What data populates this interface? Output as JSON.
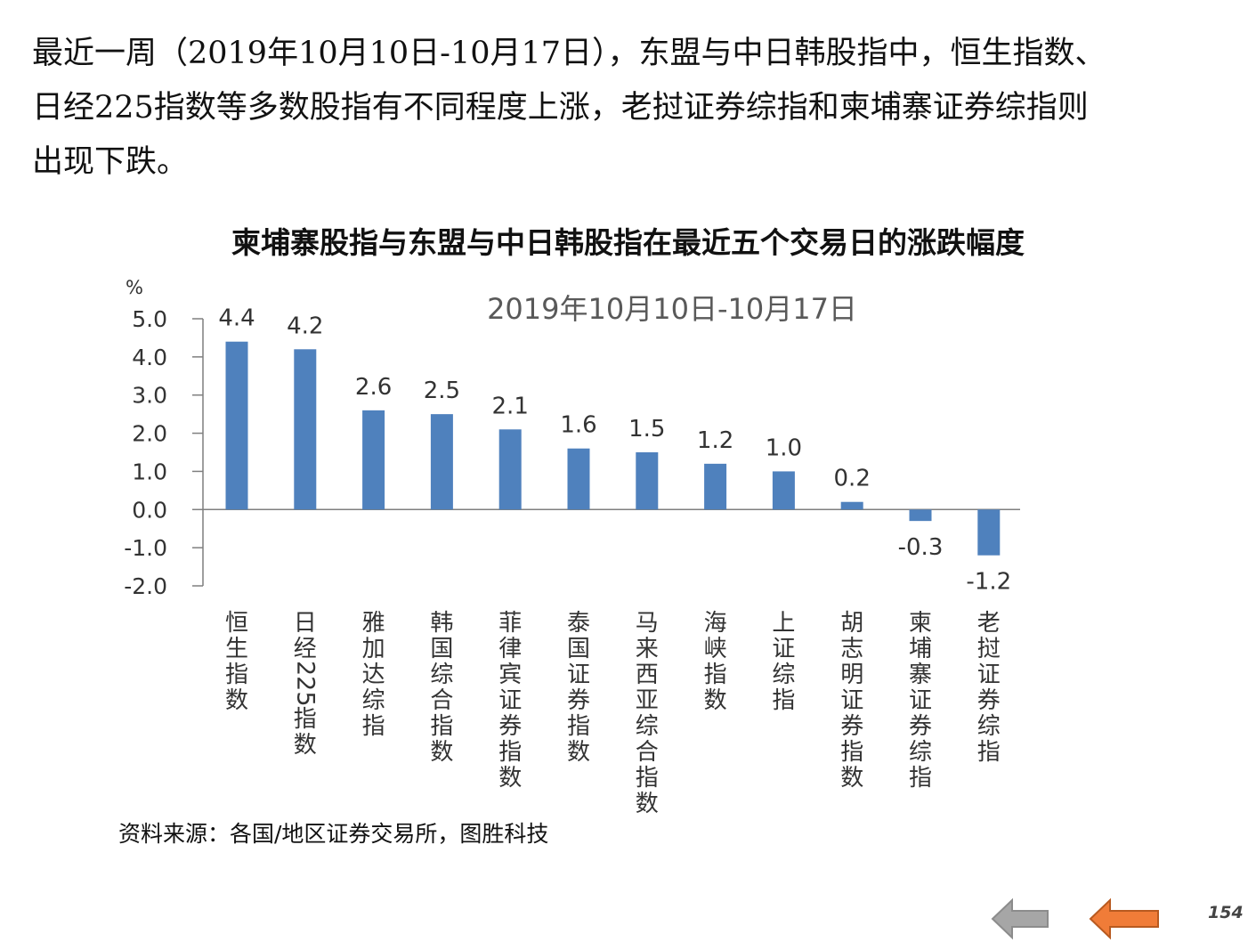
{
  "intro": {
    "lines": [
      "最近一周（2019年10月10日-10月17日），东盟与中日韩股指中，恒生指数、",
      "日经225指数等多数股指有不同程度上涨，老挝证券综指和柬埔寨证券综指则",
      "出现下跌。"
    ]
  },
  "chart_data": {
    "type": "bar",
    "title": "柬埔寨股指与东盟与中日韩股指在最近五个交易日的涨跌幅度",
    "subtitle": "2019年10月10日-10月17日",
    "ylabel": "%",
    "ylim": [
      -2.0,
      5.0
    ],
    "yticks": [
      "5.0",
      "4.0",
      "3.0",
      "2.0",
      "1.0",
      "0.0",
      "-1.0",
      "-2.0"
    ],
    "categories": [
      "恒生指数",
      "日经225指数",
      "雅加达综指",
      "韩国综合指数",
      "菲律宾证券指数",
      "泰国证券指数",
      "马来西亚综合指数",
      "海峡指数",
      "上证综指",
      "胡志明证券指数",
      "柬埔寨证券综指",
      "老挝证券综指"
    ],
    "values": [
      4.4,
      4.2,
      2.6,
      2.5,
      2.1,
      1.6,
      1.5,
      1.2,
      1.0,
      0.2,
      -0.3,
      -1.2
    ],
    "value_labels": [
      "4.4",
      "4.2",
      "2.6",
      "2.5",
      "2.1",
      "1.6",
      "1.5",
      "1.2",
      "1.0",
      "0.2",
      "-0.3",
      "-1.2"
    ],
    "grid": false,
    "legend": "none",
    "bar_color": "#4f81bd"
  },
  "source": "资料来源：各国/地区证券交易所，图胜科技",
  "nav": {
    "back_color": "#a6a6a6",
    "next_color": "#f07c38"
  },
  "page_number": "154"
}
